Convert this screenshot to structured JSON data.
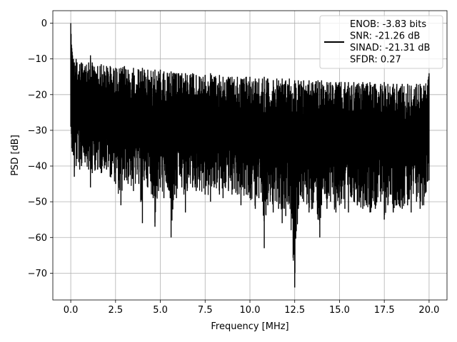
{
  "chart_data": {
    "type": "line",
    "title": "",
    "xlabel": "Frequency [MHz]",
    "ylabel": "PSD [dB]",
    "xlim": [
      -1.0,
      21.0
    ],
    "ylim": [
      -77.5,
      3.5
    ],
    "x_ticks": [
      0.0,
      2.5,
      5.0,
      7.5,
      10.0,
      12.5,
      15.0,
      17.5,
      20.0
    ],
    "x_tick_labels": [
      "0.0",
      "2.5",
      "5.0",
      "7.5",
      "10.0",
      "12.5",
      "15.0",
      "17.5",
      "20.0"
    ],
    "y_ticks": [
      0,
      -10,
      -20,
      -30,
      -40,
      -50,
      -60,
      -70
    ],
    "y_tick_labels": [
      "0",
      "−10",
      "−20",
      "−30",
      "−40",
      "−50",
      "−60",
      "−70"
    ],
    "grid": true,
    "legend_placement": "upper-right",
    "line_color": "#000000",
    "series": [
      {
        "name": "ENOB: -3.83 bits\nSNR: -21.26 dB\nSINAD: -21.31 dB\nSFDR: 0.27",
        "legend_lines": [
          "ENOB: -3.83 bits",
          "SNR: -21.26 dB",
          "SINAD: -21.31 dB",
          "SFDR: 0.27"
        ],
        "x": [
          0.0,
          0.02,
          0.04,
          0.06,
          0.08,
          0.1,
          0.15,
          0.2,
          0.3,
          0.35,
          0.5,
          0.6,
          0.8,
          1.0,
          1.1,
          1.2,
          1.5,
          1.7,
          2.0,
          2.2,
          2.5,
          2.8,
          3.0,
          3.2,
          3.5,
          3.8,
          4.0,
          4.1,
          4.3,
          4.6,
          4.7,
          4.9,
          5.0,
          5.2,
          5.4,
          5.6,
          5.8,
          5.9,
          6.2,
          6.4,
          6.5,
          6.8,
          7.0,
          7.5,
          7.8,
          8.0,
          8.3,
          8.5,
          8.8,
          9.0,
          9.3,
          9.5,
          9.8,
          10.0,
          10.3,
          10.5,
          10.7,
          10.8,
          11.0,
          11.3,
          11.5,
          11.6,
          11.8,
          12.0,
          12.2,
          12.5,
          12.7,
          13.0,
          13.3,
          13.5,
          13.8,
          13.9,
          14.0,
          14.3,
          14.5,
          14.8,
          15.0,
          15.3,
          15.5,
          15.8,
          16.0,
          16.3,
          16.5,
          16.7,
          17.0,
          17.3,
          17.5,
          17.7,
          18.0,
          18.2,
          18.5,
          18.8,
          19.0,
          19.3,
          19.5,
          19.7,
          20.0
        ],
        "upper": [
          0.0,
          -3,
          -6,
          -7,
          -8,
          -9,
          -10,
          -11,
          -10,
          -11,
          -11.5,
          -11,
          -12,
          -11,
          -9,
          -11,
          -12,
          -11.5,
          -12,
          -12,
          -12.5,
          -12.5,
          -12,
          -13,
          -12.5,
          -13,
          -12.5,
          -13,
          -13,
          -13.5,
          -13,
          -13.5,
          -13,
          -13.5,
          -14,
          -13.5,
          -14,
          -14,
          -14,
          -14,
          -14.5,
          -14,
          -14.5,
          -14.5,
          -14,
          -15,
          -14.5,
          -15,
          -15,
          -15,
          -15,
          -15.5,
          -15,
          -15,
          -15.5,
          -15.5,
          -15.5,
          -15,
          -15.5,
          -16,
          -15.5,
          -16,
          -15.5,
          -16,
          -15.5,
          -16,
          -16,
          -16,
          -16,
          -16.5,
          -16,
          -16.5,
          -16,
          -16.5,
          -16.5,
          -16.5,
          -16.5,
          -16.5,
          -16.5,
          -16.5,
          -17,
          -16.5,
          -17,
          -16.5,
          -17,
          -17,
          -16.5,
          -17,
          -17,
          -17,
          -17,
          -17,
          -17.5,
          -17,
          -17,
          -17.5,
          -14
        ],
        "lower": [
          -29,
          -27,
          -31,
          -35,
          -36,
          -36,
          -37,
          -43,
          -40,
          -38,
          -41,
          -40,
          -39,
          -41,
          -46,
          -42,
          -41,
          -42,
          -41,
          -43,
          -45,
          -51,
          -44,
          -45,
          -47,
          -45,
          -56,
          -44,
          -46,
          -49,
          -57,
          -47,
          -46,
          -49,
          -46,
          -60,
          -48,
          -49,
          -46,
          -53,
          -47,
          -46,
          -47,
          -48,
          -50,
          -46,
          -48,
          -49,
          -47,
          -48,
          -48,
          -51,
          -48,
          -49,
          -52,
          -49,
          -50,
          -63,
          -51,
          -53,
          -50,
          -52,
          -56,
          -54,
          -50,
          -74,
          -52,
          -50,
          -53,
          -52,
          -55,
          -60,
          -51,
          -52,
          -50,
          -53,
          -51,
          -52,
          -53,
          -50,
          -51,
          -52,
          -51,
          -53,
          -52,
          -50,
          -55,
          -51,
          -53,
          -51,
          -52,
          -51,
          -53,
          -50,
          -52,
          -51,
          -44
        ]
      }
    ]
  }
}
